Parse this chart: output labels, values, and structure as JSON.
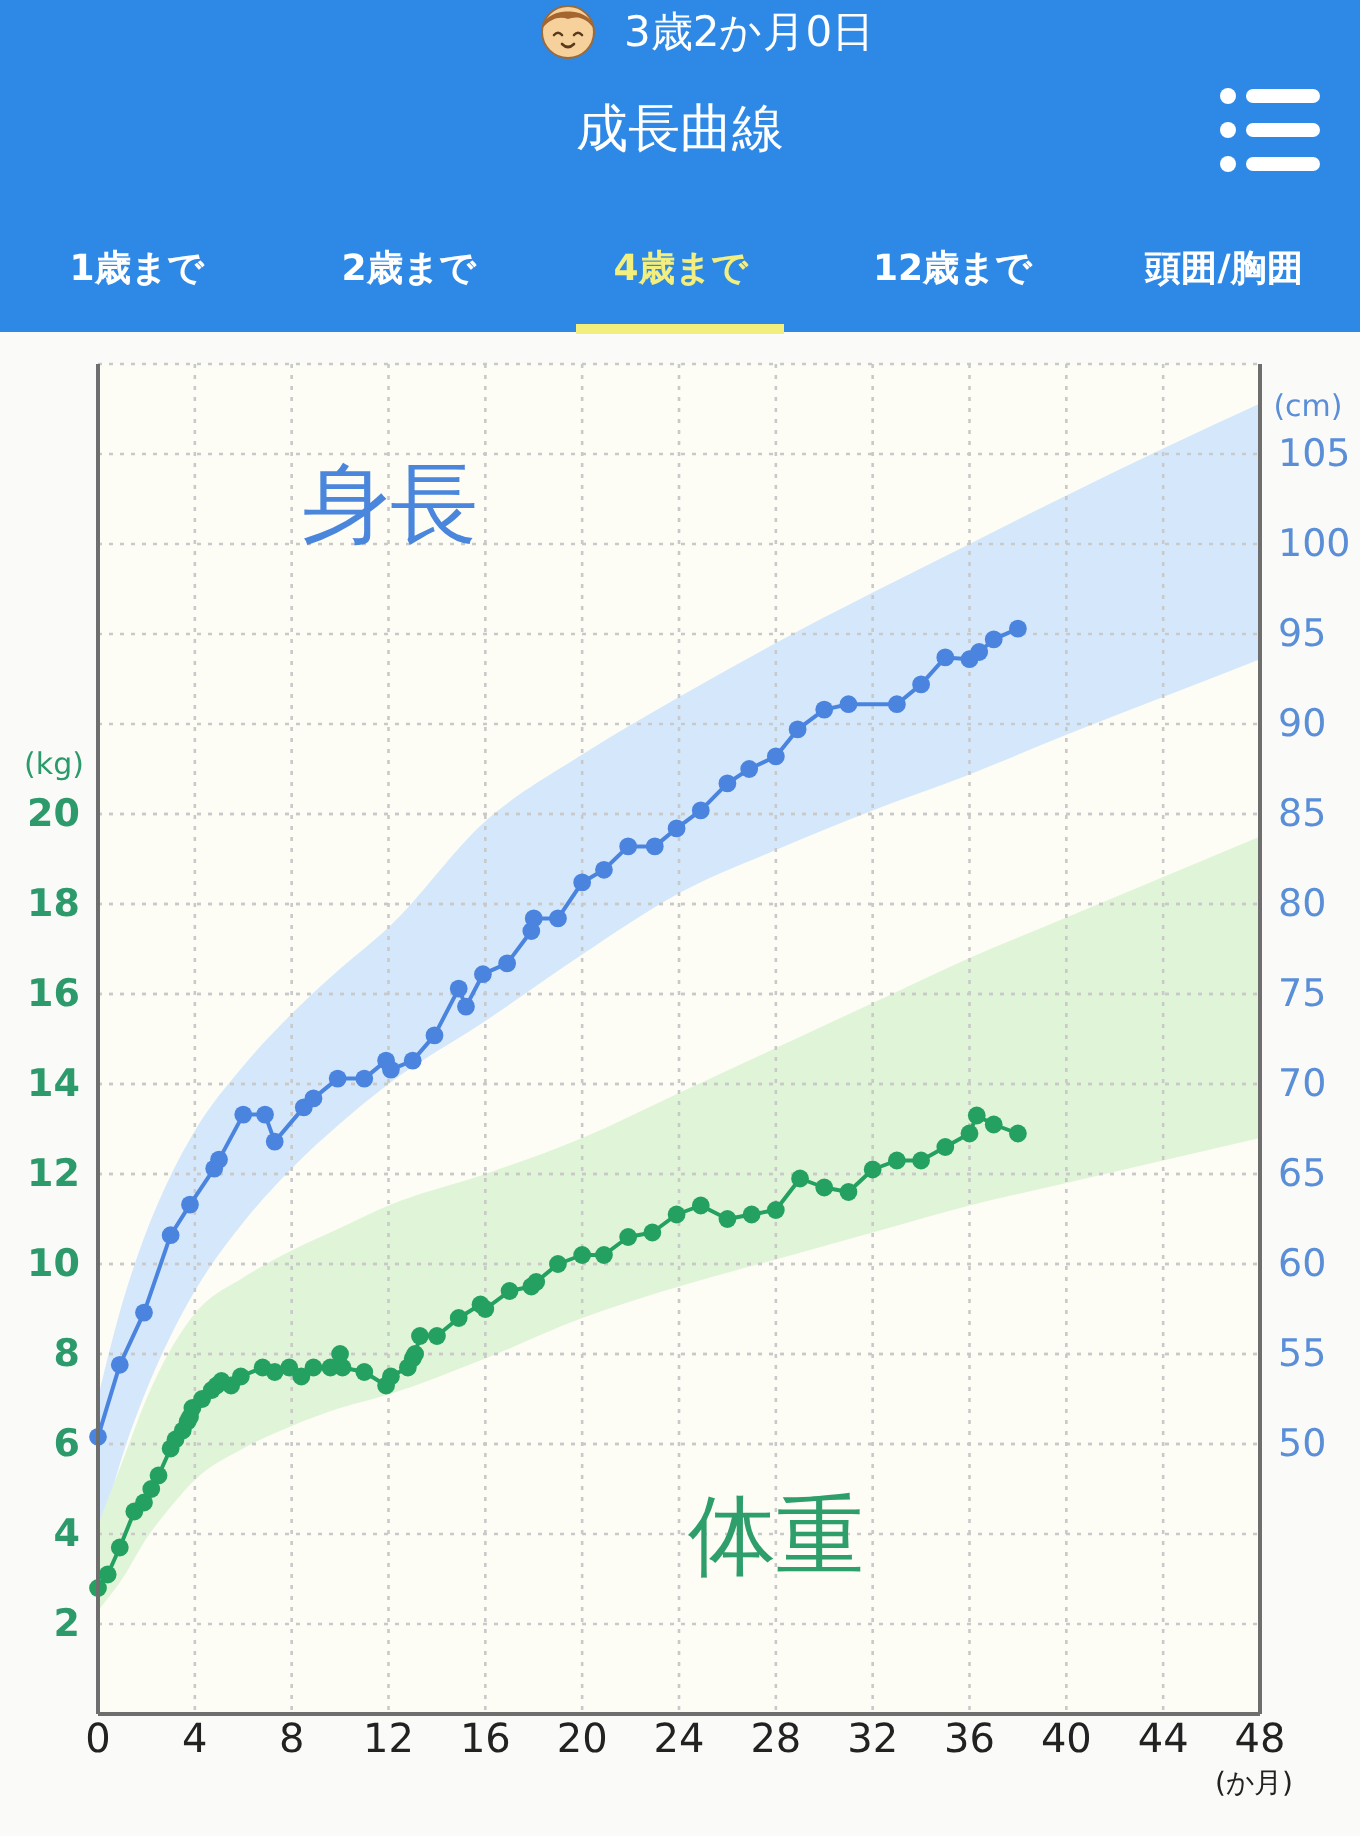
{
  "chart_data": {
    "type": "line",
    "title": "成長曲線",
    "subtitle": "3歳2か月0日",
    "xlabel": "(か月)",
    "ylabel": "(kg)",
    "y2label": "(cm)",
    "annotations": [
      "1歳まで",
      "2歳まで",
      "4歳まで",
      "12歳まで",
      "頭囲/胸囲"
    ],
    "xlim": [
      0,
      48
    ],
    "xticks": [
      0,
      4,
      8,
      12,
      16,
      20,
      24,
      28,
      32,
      36,
      40,
      44,
      48
    ],
    "ylim": [
      0,
      30
    ],
    "yticks": [
      2,
      4,
      6,
      8,
      10,
      12,
      14,
      16,
      18,
      20
    ],
    "y2lim": [
      35,
      110
    ],
    "y2ticks": [
      50,
      55,
      60,
      65,
      70,
      75,
      80,
      85,
      90,
      95,
      100,
      105
    ],
    "grid": true,
    "series": [
      {
        "axis": "y2",
        "color": "#d5e8fb",
        "x": [
          0,
          1,
          2,
          3,
          4,
          6,
          8,
          10,
          12,
          16,
          20,
          24,
          28,
          32,
          36,
          40,
          44,
          48
        ],
        "values": [
          null,
          null,
          null,
          null,
          null,
          null,
          null,
          null,
          null,
          null,
          null,
          null,
          null,
          null,
          null,
          null,
          null,
          null
        ],
        "lower": [
          44.5,
          49.3,
          53.0,
          56.0,
          58.5,
          62.3,
          65.3,
          67.8,
          70.0,
          73.5,
          77.2,
          80.6,
          83.0,
          85.2,
          87.2,
          89.4,
          91.5,
          93.6
        ],
        "upper": [
          52.6,
          57.8,
          61.8,
          64.9,
          67.4,
          71.0,
          73.9,
          76.4,
          78.7,
          84.6,
          88.3,
          91.5,
          94.5,
          97.3,
          100.0,
          102.7,
          105.3,
          107.8
        ]
      },
      {
        "color": "#e0f5d8",
        "x": [
          0,
          1,
          2,
          3,
          4,
          6,
          8,
          10,
          12,
          16,
          20,
          24,
          28,
          32,
          36,
          40,
          44,
          48
        ],
        "values": [
          null,
          null,
          null,
          null,
          null,
          null,
          null,
          null,
          null,
          null,
          null,
          null,
          null,
          null,
          null,
          null,
          null,
          null
        ],
        "lower": [
          2.3,
          3.0,
          3.9,
          4.6,
          5.2,
          5.9,
          6.4,
          6.8,
          7.1,
          7.9,
          8.8,
          9.5,
          10.1,
          10.7,
          11.3,
          11.8,
          12.3,
          12.8
        ],
        "upper": [
          4.2,
          5.6,
          7.0,
          8.1,
          8.9,
          9.7,
          10.3,
          10.8,
          11.3,
          12.0,
          12.8,
          13.8,
          14.8,
          15.8,
          16.8,
          17.7,
          18.6,
          19.5
        ]
      },
      {
        "name": "身長",
        "axis": "y2",
        "color": "#4a84df",
        "marker": "circle",
        "x": [
          0,
          0.9,
          1.9,
          3.0,
          3.8,
          4.8,
          5.0,
          6.0,
          6.9,
          7.3,
          8.5,
          8.9,
          9.9,
          11.0,
          11.9,
          12.1,
          13.0,
          13.9,
          14.9,
          15.2,
          15.9,
          16.9,
          17.9,
          18.0,
          19.0,
          20.0,
          20.9,
          21.9,
          23.0,
          23.9,
          24.9,
          26.0,
          26.9,
          28.0,
          28.9,
          30.0,
          31.0,
          33.0,
          34.0,
          35.0,
          36.0,
          36.4,
          37.0,
          38.0
        ],
        "values": [
          50.4,
          54.4,
          57.3,
          61.6,
          63.3,
          65.3,
          65.8,
          68.3,
          68.3,
          66.8,
          68.7,
          69.2,
          70.3,
          70.3,
          71.3,
          70.8,
          71.3,
          72.7,
          75.3,
          74.3,
          76.1,
          76.7,
          78.5,
          79.2,
          79.2,
          81.2,
          81.9,
          83.2,
          83.2,
          84.2,
          85.2,
          86.7,
          87.5,
          88.2,
          89.7,
          90.8,
          91.1,
          91.1,
          92.2,
          93.7,
          93.6,
          94.0,
          94.7,
          95.3
        ]
      },
      {
        "name": "体重",
        "color": "#24a060",
        "marker": "circle",
        "x": [
          0,
          0.4,
          0.9,
          1.5,
          1.9,
          2.2,
          2.5,
          3.0,
          3.2,
          3.5,
          3.7,
          3.8,
          3.9,
          4.3,
          4.7,
          4.9,
          5.1,
          5.5,
          5.9,
          6.8,
          7.3,
          7.9,
          8.4,
          8.9,
          9.6,
          10.0,
          10.1,
          11.0,
          11.9,
          12.1,
          12.8,
          13.0,
          13.1,
          13.3,
          14.0,
          14.9,
          15.8,
          16.0,
          17.0,
          17.9,
          18.1,
          19.0,
          20.0,
          20.9,
          21.9,
          22.9,
          23.9,
          24.9,
          26.0,
          27.0,
          28.0,
          29.0,
          30.0,
          31.0,
          32.0,
          33.0,
          34.0,
          35.0,
          36.0,
          36.3,
          37.0,
          38.0
        ],
        "values": [
          2.8,
          3.1,
          3.7,
          4.5,
          4.7,
          5.0,
          5.3,
          5.9,
          6.1,
          6.3,
          6.5,
          6.6,
          6.8,
          7.0,
          7.2,
          7.3,
          7.4,
          7.3,
          7.5,
          7.7,
          7.6,
          7.7,
          7.5,
          7.7,
          7.7,
          8.0,
          7.7,
          7.6,
          7.3,
          7.5,
          7.7,
          7.9,
          8.0,
          8.4,
          8.4,
          8.8,
          9.1,
          9.0,
          9.4,
          9.5,
          9.6,
          10.0,
          10.2,
          10.2,
          10.6,
          10.7,
          11.1,
          11.3,
          11.0,
          11.1,
          11.2,
          11.9,
          11.7,
          11.6,
          12.1,
          12.3,
          12.3,
          12.6,
          12.9,
          13.3,
          13.1,
          12.9
        ]
      }
    ]
  }
}
